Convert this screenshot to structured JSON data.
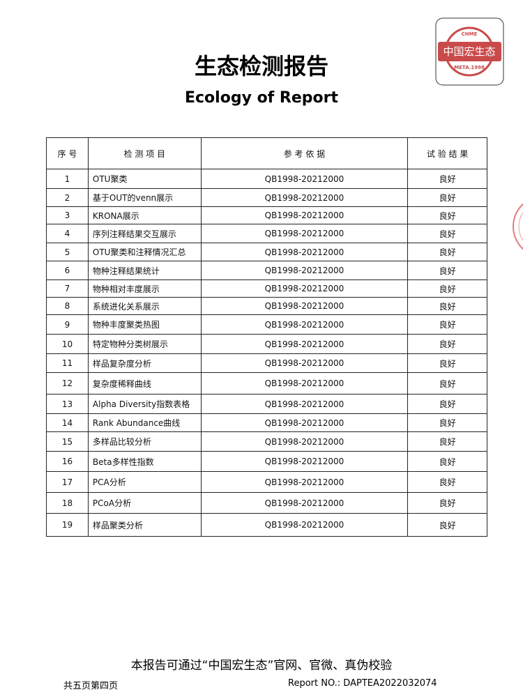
{
  "logo": {
    "top": "CHME",
    "name": "中国宏生态",
    "bottom": "META.1998"
  },
  "header": {
    "title": "生态检测报告",
    "subtitle": "Ecology of Report"
  },
  "table": {
    "columns": [
      "序 号",
      "检 测 项 目",
      "参 考 依 据",
      "试 验 结 果"
    ],
    "rows": [
      [
        1,
        "OTU聚类",
        "QB1998-20212000",
        "良好"
      ],
      [
        2,
        "基于OUT的venn展示",
        "QB1998-20212000",
        "良好"
      ],
      [
        3,
        "KRONA展示",
        "QB1998-20212000",
        "良好"
      ],
      [
        4,
        "序列注释结果交互展示",
        "QB1998-20212000",
        "良好"
      ],
      [
        5,
        "OTU聚类和注释情况汇总",
        "QB1998-20212000",
        "良好"
      ],
      [
        6,
        "物种注释结果统计",
        "QB1998-20212000",
        "良好"
      ],
      [
        7,
        "物种相对丰度展示",
        "QB1998-20212000",
        "良好"
      ],
      [
        8,
        "系统进化关系展示",
        "QB1998-20212000",
        "良好"
      ],
      [
        9,
        "物种丰度聚类热图",
        "QB1998-20212000",
        "良好"
      ],
      [
        10,
        "特定物种分类树展示",
        "QB1998-20212000",
        "良好"
      ],
      [
        11,
        "样品复杂度分析",
        "QB1998-20212000",
        "良好"
      ],
      [
        12,
        "复杂度稀释曲线",
        "QB1998-20212000",
        "良好"
      ],
      [
        13,
        "Alpha Diversity指数表格",
        "QB1998-20212000",
        "良好"
      ],
      [
        14,
        "Rank Abundance曲线",
        "QB1998-20212000",
        "良好"
      ],
      [
        15,
        "多样品比较分析",
        "QB1998-20212000",
        "良好"
      ],
      [
        16,
        "Beta多样性指数",
        "QB1998-20212000",
        "良好"
      ],
      [
        17,
        "PCA分析",
        "QB1998-20212000",
        "良好"
      ],
      [
        18,
        "PCoA分析",
        "QB1998-20212000",
        "良好"
      ],
      [
        19,
        "样品聚类分析",
        "QB1998-20212000",
        "良好"
      ]
    ]
  },
  "footer": {
    "note": "本报告可通过“中国宏生态”官网、官微、真伪校验",
    "pages": "共五页第四页",
    "report_no": "Report NO.: DAPTEA2022032074"
  }
}
